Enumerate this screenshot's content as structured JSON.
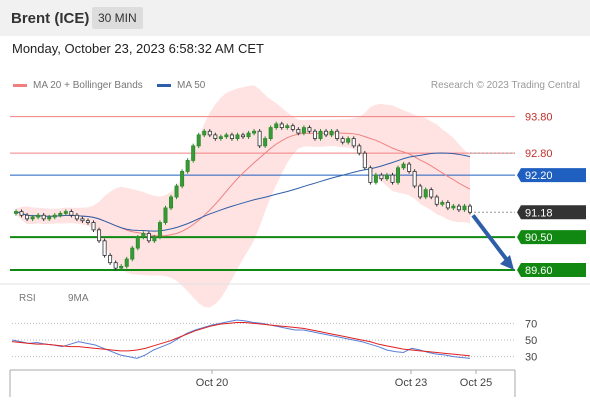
{
  "header": {
    "instrument": "Brent (ICE)",
    "interval": "30 MIN"
  },
  "timestamp": "Monday, October 23, 2023 6:58:32 AM CET",
  "legend": {
    "ma20": {
      "label": "MA 20 + Bollinger Bands",
      "color": "#f08080"
    },
    "ma50": {
      "label": "MA 50",
      "color": "#2f5ea8"
    }
  },
  "copyright": "Research © 2023 Trading Central",
  "rsi_legend": {
    "rsi": {
      "label": "RSI",
      "color": "#5a7fd6"
    },
    "ma9": {
      "label": "9MA",
      "color": "#e02020"
    }
  },
  "chart_data": [
    {
      "type": "candlestick",
      "ylim": [
        89.6,
        93.9
      ],
      "x_ticks": [
        "Oct 20",
        "Oct 23",
        "Oct 25"
      ],
      "levels": [
        {
          "value": 93.8,
          "label": "93.80",
          "kind": "resistance",
          "color": "#f08080"
        },
        {
          "value": 92.8,
          "label": "92.80",
          "kind": "resistance",
          "color": "#f08080"
        },
        {
          "value": 92.2,
          "label": "92.20",
          "kind": "pivot",
          "color": "#1f5fc0"
        },
        {
          "value": 91.18,
          "label": "91.18",
          "kind": "last",
          "color": "#333333"
        },
        {
          "value": 90.5,
          "label": "90.50",
          "kind": "support",
          "color": "#118811"
        },
        {
          "value": 89.6,
          "label": "89.60",
          "kind": "support",
          "color": "#118811"
        }
      ],
      "close": [
        91.2,
        91.1,
        91.0,
        91.05,
        91.1,
        91.0,
        91.05,
        91.1,
        91.15,
        91.2,
        91.1,
        91.0,
        90.95,
        90.9,
        90.7,
        90.4,
        90.0,
        89.8,
        89.65,
        89.7,
        89.9,
        90.2,
        90.5,
        90.6,
        90.4,
        90.5,
        90.9,
        91.3,
        91.6,
        91.9,
        92.3,
        92.6,
        93.0,
        93.3,
        93.4,
        93.3,
        93.2,
        93.25,
        93.3,
        93.2,
        93.3,
        93.25,
        93.35,
        93.4,
        93.0,
        93.2,
        93.5,
        93.6,
        93.5,
        93.55,
        93.45,
        93.35,
        93.5,
        93.4,
        93.2,
        93.4,
        93.3,
        93.4,
        93.2,
        93.1,
        93.2,
        93.0,
        92.8,
        92.4,
        92.0,
        92.2,
        92.1,
        92.2,
        92.0,
        92.4,
        92.5,
        92.3,
        91.9,
        91.6,
        91.8,
        91.6,
        91.4,
        91.45,
        91.3,
        91.35,
        91.25,
        91.35,
        91.18
      ]
    },
    {
      "type": "line",
      "title": "RSI",
      "ylim": [
        20,
        80
      ],
      "y_ticks": [
        70,
        50,
        30
      ],
      "series": [
        {
          "name": "RSI",
          "values": [
            50,
            48,
            46,
            47,
            45,
            44,
            42,
            45,
            48,
            46,
            44,
            40,
            36,
            32,
            30,
            28,
            32,
            38,
            42,
            46,
            52,
            58,
            62,
            65,
            68,
            70,
            72,
            74,
            73,
            71,
            70,
            68,
            66,
            64,
            62,
            62,
            60,
            58,
            56,
            54,
            52,
            50,
            48,
            45,
            42,
            38,
            36,
            35,
            40,
            38,
            35,
            33,
            32,
            30,
            29,
            28
          ]
        },
        {
          "name": "9MA",
          "values": [
            48,
            47,
            46,
            45,
            45,
            44,
            43,
            42,
            42,
            41,
            40,
            39,
            38,
            37,
            37,
            38,
            40,
            43,
            46,
            49,
            53,
            57,
            61,
            64,
            67,
            69,
            70,
            71,
            71,
            70,
            69,
            68,
            67,
            66,
            65,
            64,
            62,
            60,
            58,
            56,
            54,
            52,
            50,
            48,
            45,
            43,
            41,
            39,
            38,
            37,
            36,
            35,
            34,
            33,
            32,
            31
          ]
        }
      ]
    }
  ]
}
